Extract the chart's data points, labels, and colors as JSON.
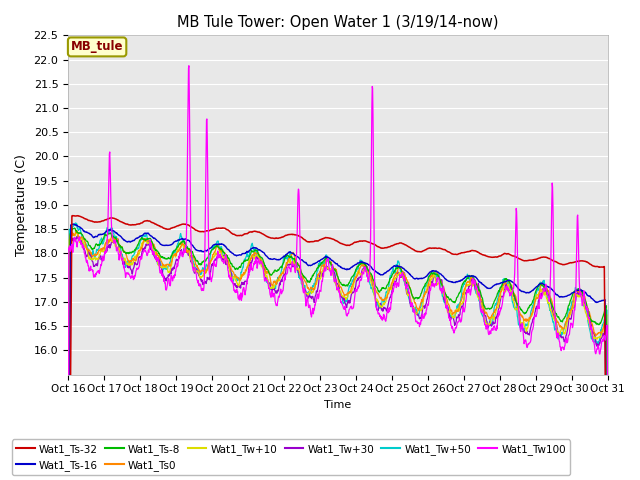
{
  "title": "MB Tule Tower: Open Water 1 (3/19/14-now)",
  "xlabel": "Time",
  "ylabel": "Temperature (C)",
  "ylim": [
    15.5,
    22.5
  ],
  "xlim": [
    0,
    15
  ],
  "xtick_labels": [
    "Oct 16",
    "Oct 17",
    "Oct 18",
    "Oct 19",
    "Oct 20",
    "Oct 21",
    "Oct 22",
    "Oct 23",
    "Oct 24",
    "Oct 25",
    "Oct 26",
    "Oct 27",
    "Oct 28",
    "Oct 29",
    "Oct 30",
    "Oct 31"
  ],
  "plot_bg": "#e8e8e8",
  "fig_bg": "#ffffff",
  "series_colors": {
    "Wat1_Ts-32": "#cc0000",
    "Wat1_Ts-16": "#0000cc",
    "Wat1_Ts-8": "#00bb00",
    "Wat1_Ts0": "#ff8800",
    "Wat1_Tw+10": "#dddd00",
    "Wat1_Tw+30": "#9900cc",
    "Wat1_Tw+50": "#00cccc",
    "Wat1_Tw100": "#ff00ff"
  },
  "legend_label": "MB_tule",
  "legend_bg": "#ffffcc",
  "legend_border": "#999900",
  "legend_text_color": "#880000",
  "spike_times": [
    1.15,
    3.35,
    3.85,
    6.4,
    8.45,
    12.45,
    13.45,
    14.15
  ],
  "spike_heights": [
    2.1,
    4.35,
    3.9,
    1.9,
    4.6,
    2.1,
    3.0,
    1.9
  ]
}
